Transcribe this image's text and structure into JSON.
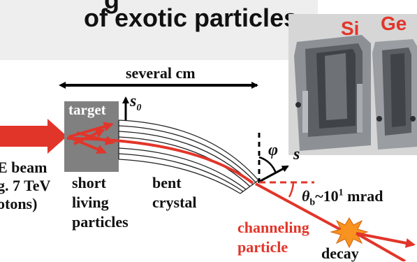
{
  "title": {
    "line1": "g",
    "line2": "of exotic particles"
  },
  "photo": {
    "label_left": "Si",
    "label_right": "Ge"
  },
  "dimension": {
    "length": "several cm"
  },
  "target": {
    "label": "target"
  },
  "beam": {
    "line1": "E beam",
    "line2": "g. 7 TeV",
    "line3": "otons)"
  },
  "labels": {
    "short_living": [
      "short",
      "living",
      "particles"
    ],
    "bent_crystal": [
      "bent",
      "crystal"
    ],
    "s0_main": "s",
    "s0_sub": "0",
    "phi": "φ",
    "s": "s",
    "theta_main": "θ",
    "theta_sub": "b",
    "theta_rest": "~10",
    "theta_sup": "1",
    "theta_unit": " mrad",
    "channeling": [
      "channeling",
      "particle"
    ],
    "decay": "decay"
  },
  "colors": {
    "accent": "#e2352a",
    "target": "#808080",
    "burst": "#f7931e"
  }
}
